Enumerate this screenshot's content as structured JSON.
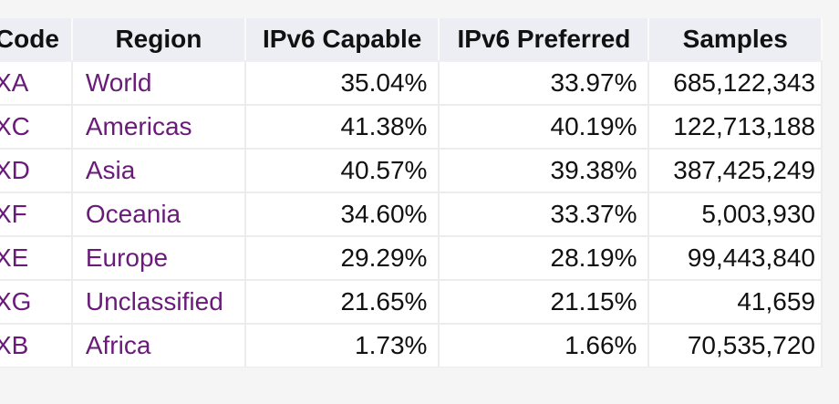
{
  "table": {
    "headers": {
      "code": "Code",
      "region": "Region",
      "capable": "IPv6 Capable",
      "preferred": "IPv6 Preferred",
      "samples": "Samples"
    },
    "rows": [
      {
        "code": "XA",
        "region": "World",
        "capable": "35.04%",
        "preferred": "33.97%",
        "samples": "685,122,343"
      },
      {
        "code": "XC",
        "region": "Americas",
        "capable": "41.38%",
        "preferred": "40.19%",
        "samples": "122,713,188"
      },
      {
        "code": "XD",
        "region": "Asia",
        "capable": "40.57%",
        "preferred": "39.38%",
        "samples": "387,425,249"
      },
      {
        "code": "XF",
        "region": "Oceania",
        "capable": "34.60%",
        "preferred": "33.37%",
        "samples": "5,003,930"
      },
      {
        "code": "XE",
        "region": "Europe",
        "capable": "29.29%",
        "preferred": "28.19%",
        "samples": "99,443,840"
      },
      {
        "code": "XG",
        "region": "Unclassified",
        "capable": "21.65%",
        "preferred": "21.15%",
        "samples": "41,659"
      },
      {
        "code": "XB",
        "region": "Africa",
        "capable": "1.73%",
        "preferred": "1.66%",
        "samples": "70,535,720"
      }
    ]
  },
  "colors": {
    "link": "#6a1b7a",
    "header_bg": "#eceef4",
    "page_bg": "#f5f5f5"
  }
}
